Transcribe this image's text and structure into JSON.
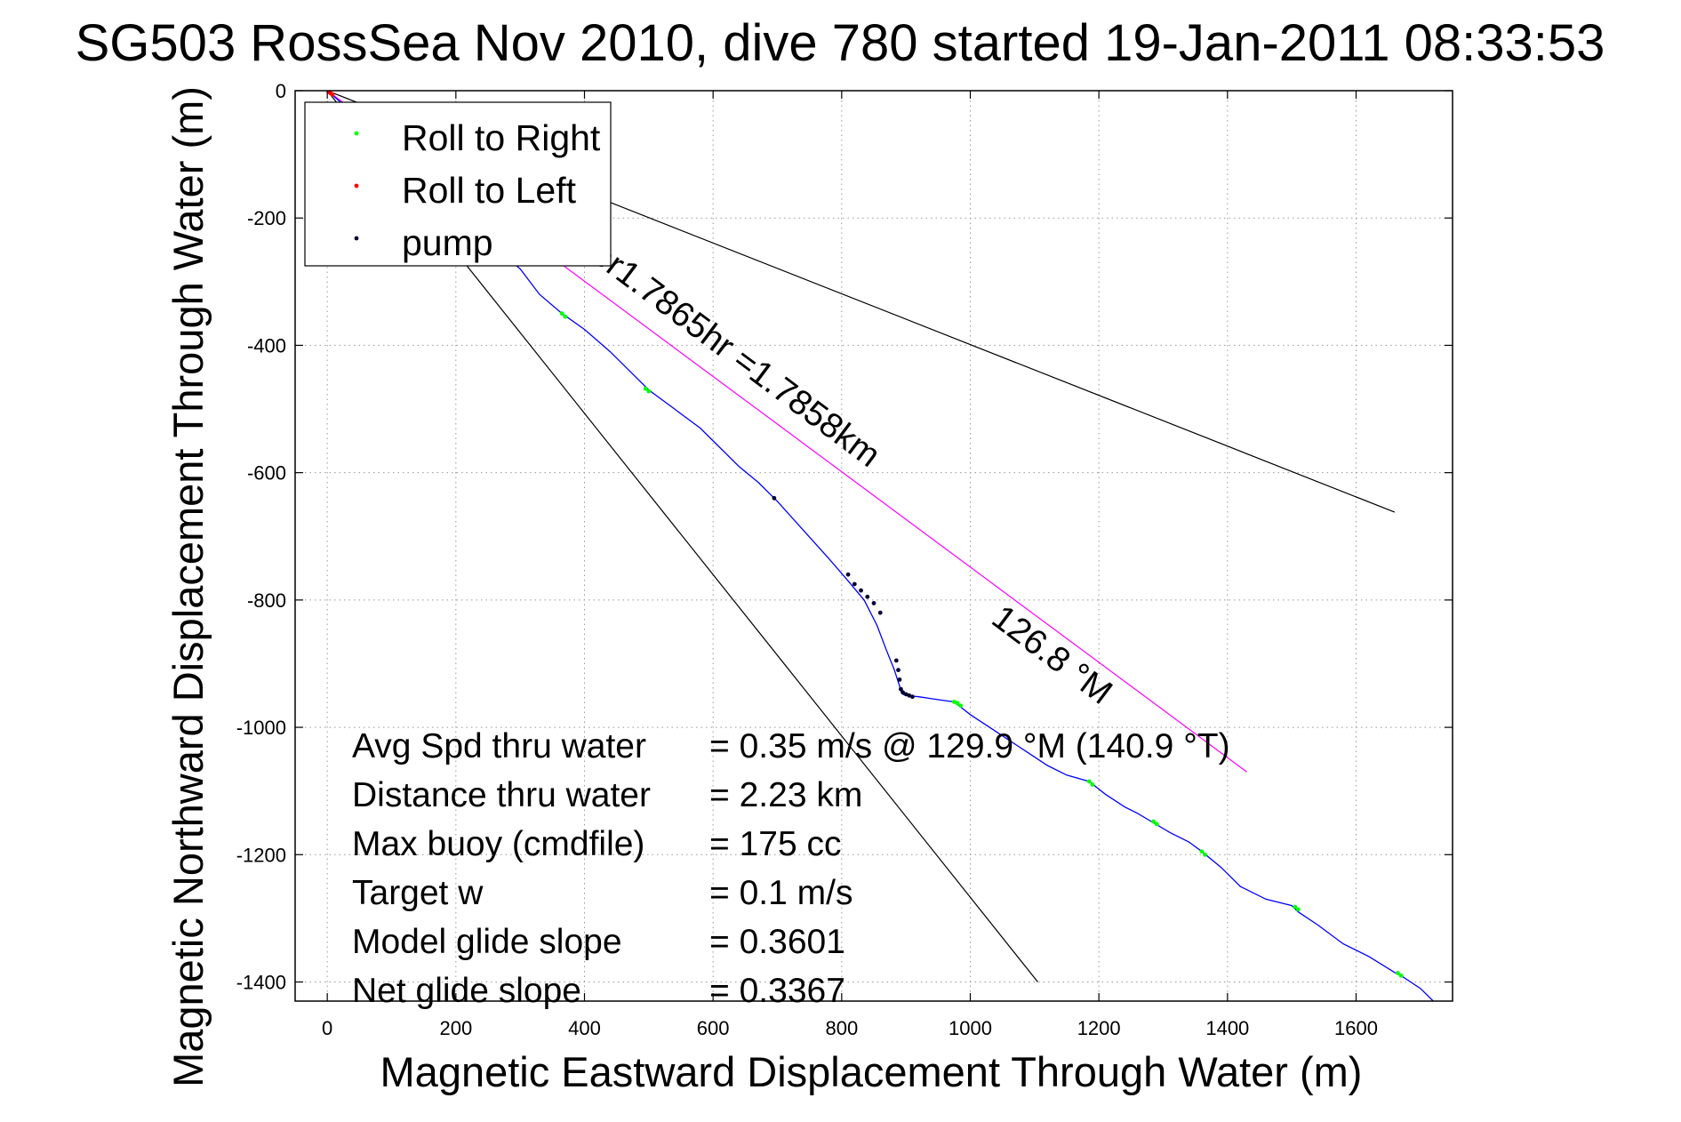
{
  "chart_data": {
    "type": "line",
    "title": "SG503 RossSea Nov 2010, dive 780 started 19-Jan-2011 08:33:53",
    "xlabel": "Magnetic Eastward Displacement Through Water (m)",
    "ylabel": "Magnetic Northward Displacement Through Water (m)",
    "xlim": [
      -50,
      1750
    ],
    "ylim": [
      -1430,
      0
    ],
    "xticks": [
      0,
      200,
      400,
      600,
      800,
      1000,
      1200,
      1400,
      1600
    ],
    "yticks": [
      0,
      -200,
      -400,
      -600,
      -800,
      -1000,
      -1200,
      -1400
    ],
    "grid": true,
    "legend_position": "top-left",
    "series": [
      {
        "name": "track",
        "color": "#0000ff",
        "x": [
          0,
          40,
          100,
          160,
          220,
          260,
          300,
          330,
          365,
          400,
          440,
          470,
          500,
          540,
          580,
          610,
          640,
          670,
          700,
          740,
          780,
          810,
          835,
          855,
          870,
          882,
          890,
          893,
          895,
          900,
          920,
          940,
          960,
          975,
          985,
          1000,
          1030,
          1060,
          1090,
          1120,
          1150,
          1185,
          1210,
          1240,
          1260,
          1285,
          1310,
          1340,
          1360,
          1390,
          1420,
          1460,
          1500,
          1510,
          1540,
          1580,
          1620,
          1660,
          1670,
          1700,
          1720
        ],
        "y": [
          0,
          -35,
          -90,
          -140,
          -200,
          -245,
          -280,
          -320,
          -350,
          -375,
          -410,
          -440,
          -470,
          -500,
          -530,
          -560,
          -590,
          -615,
          -645,
          -690,
          -735,
          -770,
          -800,
          -840,
          -880,
          -910,
          -935,
          -945,
          -948,
          -950,
          -952,
          -955,
          -958,
          -960,
          -968,
          -980,
          -1000,
          -1020,
          -1040,
          -1060,
          -1075,
          -1085,
          -1105,
          -1125,
          -1135,
          -1150,
          -1165,
          -1180,
          -1195,
          -1220,
          -1250,
          -1270,
          -1280,
          -1290,
          -1310,
          -1340,
          -1360,
          -1385,
          -1390,
          -1410,
          -1430
        ]
      },
      {
        "name": "Roll to Right",
        "color": "#00ff00",
        "x": [
          365,
          370,
          495,
          500,
          975,
          980,
          985,
          1185,
          1190,
          1285,
          1290,
          1360,
          1365,
          1505,
          1510,
          1665,
          1670
        ],
        "y": [
          -350,
          -355,
          -468,
          -472,
          -960,
          -962,
          -966,
          -1085,
          -1090,
          -1148,
          -1152,
          -1195,
          -1200,
          -1282,
          -1286,
          -1386,
          -1390
        ]
      },
      {
        "name": "Roll to Left",
        "color": "#ff0000",
        "x": [
          2,
          5,
          8
        ],
        "y": [
          -2,
          -4,
          -6
        ]
      },
      {
        "name": "pump",
        "color": "#000033",
        "x": [
          695,
          810,
          820,
          830,
          840,
          850,
          860,
          885,
          888,
          890,
          892,
          895,
          900,
          905,
          910
        ],
        "y": [
          -640,
          -760,
          -775,
          -785,
          -795,
          -805,
          -820,
          -895,
          -910,
          -925,
          -940,
          -945,
          -948,
          -950,
          -952
        ]
      }
    ],
    "reference_lines": [
      {
        "color": "#000000",
        "x": [
          0,
          1660
        ],
        "y": [
          0,
          -662
        ]
      },
      {
        "color": "#000000",
        "x": [
          0,
          1105
        ],
        "y": [
          0,
          -1400
        ]
      },
      {
        "color": "#ff00ff",
        "x": [
          0,
          1430
        ],
        "y": [
          0,
          -1070
        ]
      }
    ],
    "annotations": [
      {
        "text": "for1.7865hr =1.7858km",
        "x": 395,
        "y": -255,
        "angle": 36.8
      },
      {
        "text": "126.8 °M",
        "x": 1030,
        "y": -835,
        "angle": 36.8
      }
    ],
    "legend": [
      {
        "label": "Roll to Right",
        "color": "#00ff00"
      },
      {
        "label": "Roll to Left",
        "color": "#ff0000"
      },
      {
        "label": "pump",
        "color": "#000033"
      }
    ],
    "info_text": [
      {
        "label": "Avg Spd thru water",
        "value": "=  0.35 m/s @ 129.9 °M (140.9 °T)"
      },
      {
        "label": "Distance thru water",
        "value": "=  2.23 km"
      },
      {
        "label": "Max buoy (cmdfile)",
        "value": "= 175 cc"
      },
      {
        "label": "Target w",
        "value": "= 0.1 m/s"
      },
      {
        "label": "Model glide slope",
        "value": "= 0.3601"
      },
      {
        "label": "Net glide slope",
        "value": "= 0.3367"
      }
    ]
  }
}
